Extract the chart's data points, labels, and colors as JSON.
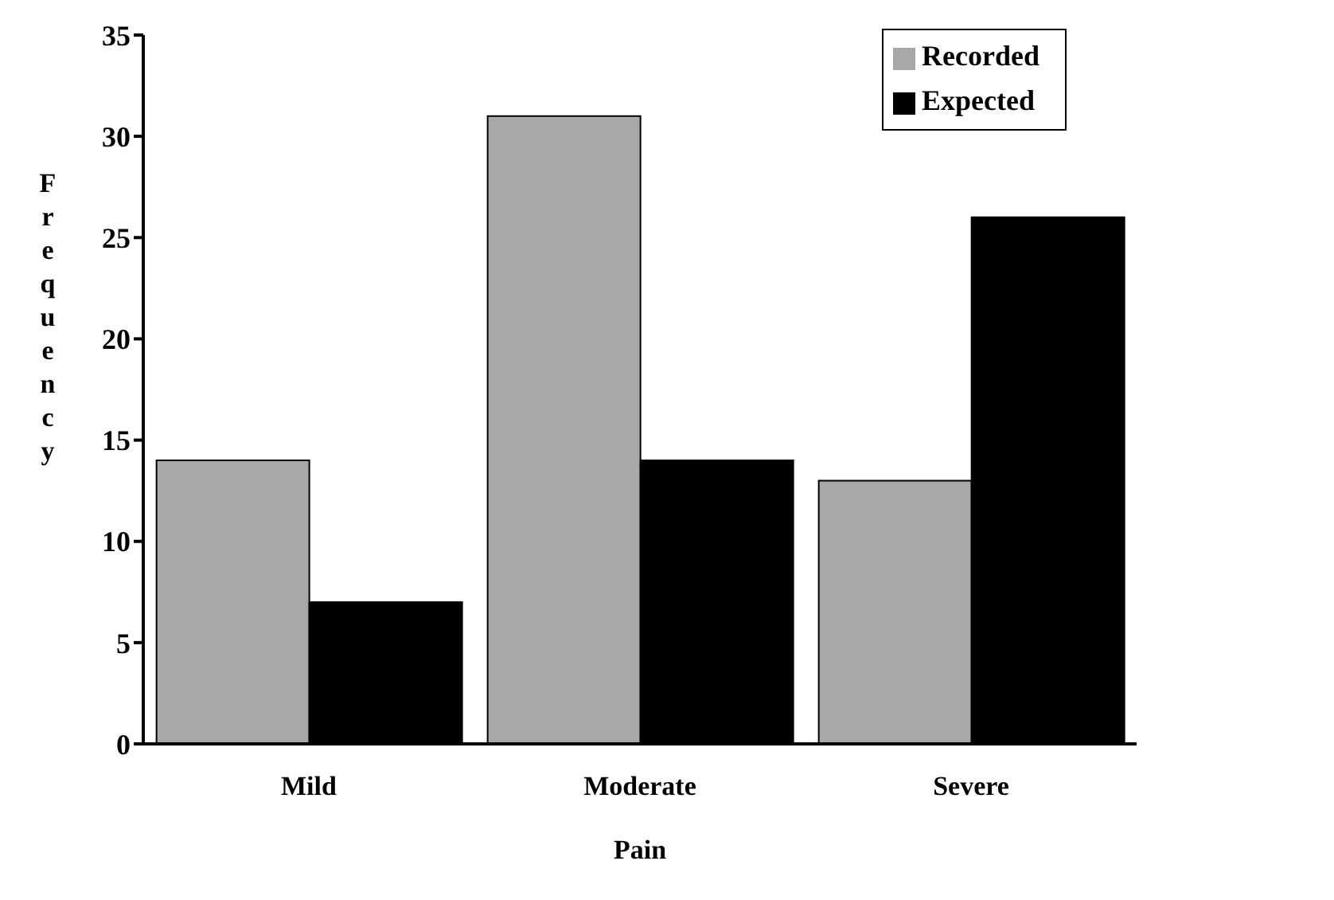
{
  "chart_data": {
    "type": "bar",
    "xlabel": "Pain",
    "ylabel": "Frequency",
    "categories": [
      "Mild",
      "Moderate",
      "Severe"
    ],
    "series": [
      {
        "name": "Recorded",
        "color": "#a8a8a8",
        "values": [
          14,
          31,
          13
        ]
      },
      {
        "name": "Expected",
        "color": "#000000",
        "values": [
          7,
          14,
          26
        ]
      }
    ],
    "ylim": [
      0,
      35
    ],
    "yticks": [
      0,
      5,
      10,
      15,
      20,
      25,
      30,
      35
    ],
    "grid": false,
    "legend": "top right"
  }
}
